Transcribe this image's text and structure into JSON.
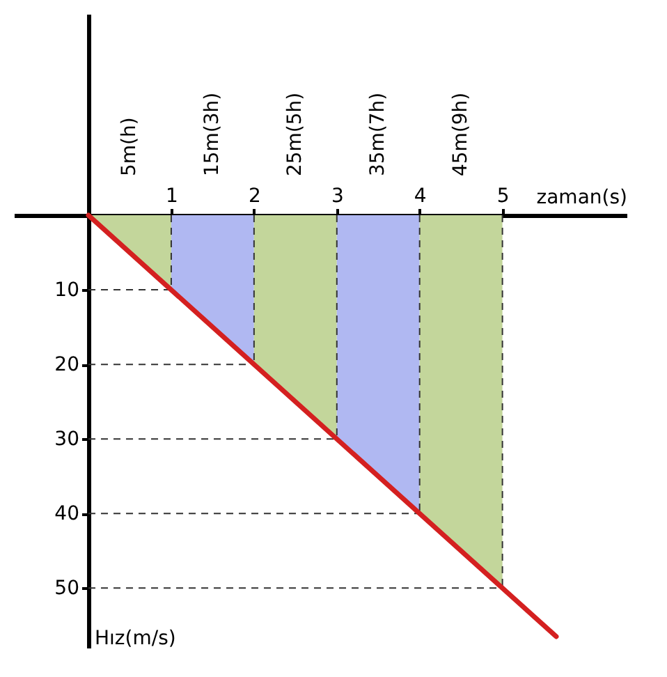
{
  "chart_data": {
    "type": "area",
    "xlabel": "zaman(s)",
    "ylabel": "Hız(m/s)",
    "xlim": [
      -0.9,
      6.5
    ],
    "ylim": [
      58,
      -27
    ],
    "xticks": [
      1,
      2,
      3,
      4,
      5
    ],
    "yticks": [
      10,
      20,
      30,
      40,
      50
    ],
    "grid": false,
    "series": [
      {
        "x": [
          0,
          1
        ],
        "values": [
          0,
          10
        ],
        "color": "#c3d69b"
      },
      {
        "x": [
          1,
          2
        ],
        "values": [
          10,
          20
        ],
        "color": "#b0b8f2"
      },
      {
        "x": [
          2,
          3
        ],
        "values": [
          20,
          30
        ],
        "color": "#c3d69b"
      },
      {
        "x": [
          3,
          4
        ],
        "values": [
          30,
          40
        ],
        "color": "#b0b8f2"
      },
      {
        "x": [
          4,
          5
        ],
        "values": [
          40,
          50
        ],
        "color": "#c3d69b"
      },
      {
        "type": "line",
        "x": [
          0,
          5.65
        ],
        "values": [
          0,
          56.5
        ],
        "color": "#d42020"
      }
    ],
    "ref_lines": [
      {
        "axis": "y",
        "value": 10,
        "color": "#333333",
        "line_style": "dashed"
      },
      {
        "axis": "y",
        "value": 20,
        "color": "#333333",
        "line_style": "dashed"
      },
      {
        "axis": "y",
        "value": 30,
        "color": "#333333",
        "line_style": "dashed"
      },
      {
        "axis": "y",
        "value": 40,
        "color": "#333333",
        "line_style": "dashed"
      },
      {
        "axis": "y",
        "value": 50,
        "color": "#333333",
        "line_style": "dashed"
      },
      {
        "axis": "x",
        "value": 1,
        "color": "#333333",
        "line_style": "dashed"
      },
      {
        "axis": "x",
        "value": 2,
        "color": "#333333",
        "line_style": "dashed"
      },
      {
        "axis": "x",
        "value": 3,
        "color": "#333333",
        "line_style": "dashed"
      },
      {
        "axis": "x",
        "value": 4,
        "color": "#333333",
        "line_style": "dashed"
      },
      {
        "axis": "x",
        "value": 5,
        "color": "#333333",
        "line_style": "dashed"
      }
    ],
    "annotations": [
      {
        "text": "5m(h)",
        "x": 0.5,
        "y": 0
      },
      {
        "text": "15m(3h)",
        "x": 1.5,
        "y": 0
      },
      {
        "text": "25m(5h)",
        "x": 2.5,
        "y": 0
      },
      {
        "text": "35m(7h)",
        "x": 3.5,
        "y": 0
      },
      {
        "text": "45m(9h)",
        "x": 4.5,
        "y": 0
      }
    ]
  }
}
